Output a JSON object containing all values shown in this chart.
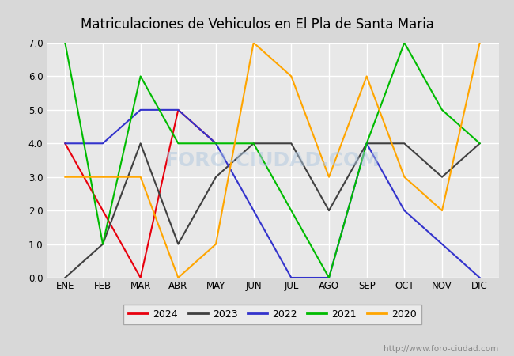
{
  "title": "Matriculaciones de Vehiculos en El Pla de Santa Maria",
  "months": [
    "ENE",
    "FEB",
    "MAR",
    "ABR",
    "MAY",
    "JUN",
    "JUL",
    "AGO",
    "SEP",
    "OCT",
    "NOV",
    "DIC"
  ],
  "series": {
    "2024": {
      "color": "#e8000d",
      "data": [
        4,
        2,
        0,
        5,
        4,
        null,
        null,
        null,
        null,
        null,
        null,
        null
      ]
    },
    "2023": {
      "color": "#404040",
      "data": [
        0,
        1,
        4,
        1,
        3,
        4,
        4,
        2,
        4,
        4,
        3,
        4
      ]
    },
    "2022": {
      "color": "#3333cc",
      "data": [
        4,
        4,
        5,
        5,
        4,
        2,
        0,
        0,
        4,
        2,
        1,
        0
      ]
    },
    "2021": {
      "color": "#00bb00",
      "data": [
        7,
        1,
        6,
        4,
        4,
        4,
        2,
        0,
        4,
        7,
        5,
        4
      ]
    },
    "2020": {
      "color": "#ffa500",
      "data": [
        3,
        3,
        3,
        0,
        1,
        7,
        6,
        3,
        6,
        3,
        2,
        7
      ]
    }
  },
  "ylim": [
    0,
    7
  ],
  "yticks": [
    0.0,
    1.0,
    2.0,
    3.0,
    4.0,
    5.0,
    6.0,
    7.0
  ],
  "fig_bg_color": "#d8d8d8",
  "plot_bg_color": "#e8e8e8",
  "grid_color": "#ffffff",
  "title_color": "#000000",
  "title_fontsize": 12,
  "tick_fontsize": 8.5,
  "url_text": "http://www.foro-ciudad.com",
  "url_color": "#888888",
  "url_fontsize": 7.5,
  "legend_order": [
    "2024",
    "2023",
    "2022",
    "2021",
    "2020"
  ],
  "watermark": "FORO-CIUDAD.COM",
  "watermark_color": "#b0c8e0",
  "watermark_alpha": 0.5,
  "line_width": 1.5
}
